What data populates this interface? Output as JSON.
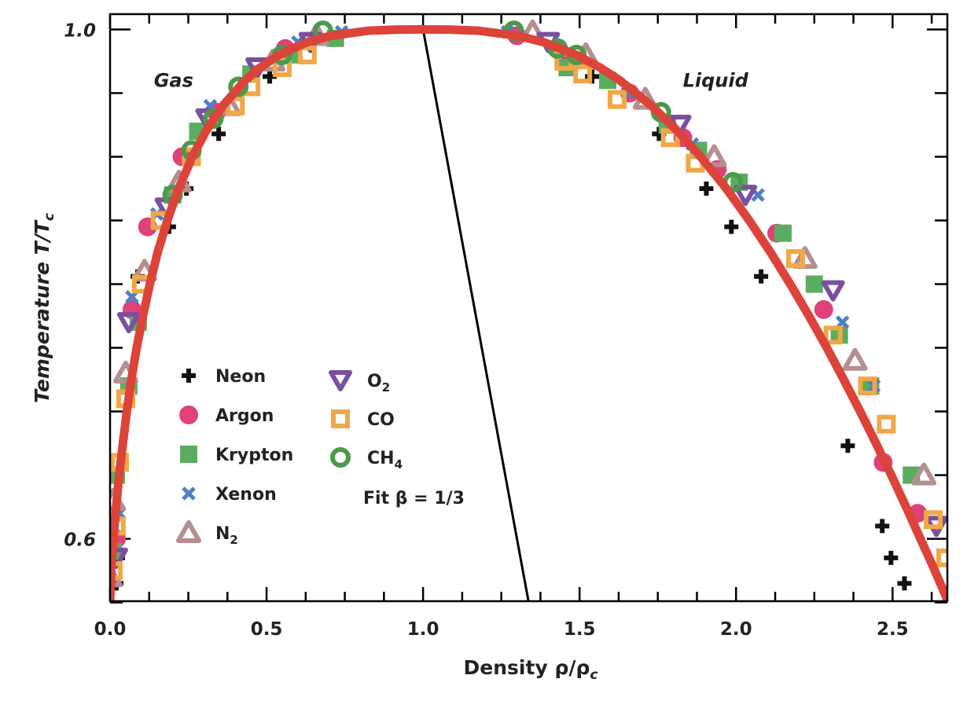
{
  "chart_data": {
    "type": "scatter",
    "title": "",
    "xlabel": "Density ρ/ρ",
    "xlabel_sub": "c",
    "ylabel": "Temperature T/T",
    "ylabel_sub": "c",
    "xlim": [
      0,
      2.675
    ],
    "ylim": [
      0.551,
      1.012
    ],
    "x_tick_labels": [
      "0.0",
      "0.5",
      "1.0",
      "1.5",
      "2.0",
      "2.5"
    ],
    "x_tick_values": [
      0,
      0.5,
      1.0,
      1.5,
      2.0,
      2.5
    ],
    "x_minor_step": 0.125,
    "y_tick_labels": [
      "1.0",
      "0.6"
    ],
    "y_tick_values": [
      1.0,
      0.6
    ],
    "y_minor_step": 0.05,
    "grid": false,
    "legend_placement": "lower-left",
    "annotations": [
      {
        "text": "Gas",
        "x": 0.14,
        "y": 0.955
      },
      {
        "text": "Liquid",
        "x": 1.83,
        "y": 0.955
      }
    ],
    "series": [
      {
        "name": "Neon",
        "sub": "",
        "marker": "plus",
        "color": "#111111",
        "points": [
          [
            0.02,
            0.565
          ],
          [
            0.025,
            0.585
          ],
          [
            0.088,
            0.806
          ],
          [
            0.188,
            0.845
          ],
          [
            0.244,
            0.875
          ],
          [
            0.347,
            0.918
          ],
          [
            0.51,
            0.963
          ],
          [
            1.54,
            0.963
          ],
          [
            1.754,
            0.918
          ],
          [
            1.905,
            0.875
          ],
          [
            1.985,
            0.845
          ],
          [
            2.08,
            0.806
          ],
          [
            2.357,
            0.673
          ],
          [
            2.467,
            0.61
          ],
          [
            2.495,
            0.585
          ],
          [
            2.538,
            0.565
          ]
        ]
      },
      {
        "name": "Argon",
        "sub": "",
        "marker": "circle",
        "color": "#e0417a",
        "points": [
          [
            0.02,
            0.6
          ],
          [
            0.07,
            0.78
          ],
          [
            0.12,
            0.845
          ],
          [
            0.23,
            0.9
          ],
          [
            0.34,
            0.935
          ],
          [
            0.56,
            0.985
          ],
          [
            1.3,
            0.995
          ],
          [
            1.47,
            0.975
          ],
          [
            1.66,
            0.95
          ],
          [
            1.83,
            0.915
          ],
          [
            1.94,
            0.89
          ],
          [
            2.13,
            0.84
          ],
          [
            2.28,
            0.78
          ],
          [
            2.47,
            0.66
          ],
          [
            2.58,
            0.62
          ]
        ]
      },
      {
        "name": "Krypton",
        "sub": "",
        "marker": "square",
        "color": "#5aad5e",
        "points": [
          [
            0.01,
            0.59
          ],
          [
            0.02,
            0.65
          ],
          [
            0.06,
            0.72
          ],
          [
            0.09,
            0.77
          ],
          [
            0.2,
            0.87
          ],
          [
            0.28,
            0.92
          ],
          [
            0.45,
            0.965
          ],
          [
            0.58,
            0.98
          ],
          [
            0.72,
            0.993
          ],
          [
            1.46,
            0.97
          ],
          [
            1.59,
            0.96
          ],
          [
            1.78,
            0.925
          ],
          [
            1.88,
            0.905
          ],
          [
            2.01,
            0.88
          ],
          [
            2.15,
            0.84
          ],
          [
            2.25,
            0.8
          ],
          [
            2.33,
            0.76
          ],
          [
            2.43,
            0.72
          ],
          [
            2.56,
            0.65
          ]
        ]
      },
      {
        "name": "Xenon",
        "sub": "",
        "marker": "x",
        "color": "#4f7fc4",
        "points": [
          [
            0.03,
            0.62
          ],
          [
            0.07,
            0.79
          ],
          [
            0.15,
            0.855
          ],
          [
            0.32,
            0.94
          ],
          [
            0.6,
            0.99
          ],
          [
            0.74,
            0.998
          ],
          [
            1.27,
            0.998
          ],
          [
            1.42,
            0.985
          ],
          [
            1.66,
            0.95
          ],
          [
            1.86,
            0.91
          ],
          [
            2.07,
            0.87
          ],
          [
            2.34,
            0.77
          ],
          [
            2.44,
            0.72
          ]
        ]
      },
      {
        "name": "N",
        "sub": "2",
        "marker": "triangle",
        "color": "#b58f8f",
        "points": [
          [
            0.0,
            0.57
          ],
          [
            0.01,
            0.63
          ],
          [
            0.05,
            0.73
          ],
          [
            0.11,
            0.81
          ],
          [
            0.22,
            0.88
          ],
          [
            0.38,
            0.94
          ],
          [
            0.52,
            0.975
          ],
          [
            0.66,
            0.995
          ],
          [
            1.35,
            0.998
          ],
          [
            1.52,
            0.98
          ],
          [
            1.71,
            0.945
          ],
          [
            1.93,
            0.9
          ],
          [
            2.22,
            0.82
          ],
          [
            2.38,
            0.74
          ],
          [
            2.6,
            0.65
          ]
        ]
      },
      {
        "name": "O",
        "sub": "2",
        "marker": "triangle-down",
        "color": "#7a4fa0",
        "points": [
          [
            0.02,
            0.585
          ],
          [
            0.06,
            0.77
          ],
          [
            0.18,
            0.86
          ],
          [
            0.31,
            0.93
          ],
          [
            0.47,
            0.97
          ],
          [
            0.64,
            0.99
          ],
          [
            1.4,
            0.99
          ],
          [
            1.82,
            0.925
          ],
          [
            2.03,
            0.87
          ],
          [
            2.31,
            0.795
          ],
          [
            2.64,
            0.61
          ]
        ]
      },
      {
        "name": "CO",
        "sub": "",
        "marker": "open-square",
        "color": "#f0a848",
        "points": [
          [
            0.01,
            0.575
          ],
          [
            0.02,
            0.61
          ],
          [
            0.03,
            0.66
          ],
          [
            0.05,
            0.71
          ],
          [
            0.1,
            0.8
          ],
          [
            0.16,
            0.85
          ],
          [
            0.26,
            0.9
          ],
          [
            0.4,
            0.94
          ],
          [
            0.45,
            0.955
          ],
          [
            0.55,
            0.97
          ],
          [
            0.63,
            0.98
          ],
          [
            1.45,
            0.975
          ],
          [
            1.51,
            0.965
          ],
          [
            1.62,
            0.945
          ],
          [
            1.79,
            0.915
          ],
          [
            1.87,
            0.895
          ],
          [
            2.19,
            0.82
          ],
          [
            2.31,
            0.76
          ],
          [
            2.42,
            0.72
          ],
          [
            2.48,
            0.69
          ],
          [
            2.63,
            0.615
          ],
          [
            2.67,
            0.585
          ]
        ]
      },
      {
        "name": "CH",
        "sub": "4",
        "marker": "open-circle",
        "color": "#4a9a4a",
        "points": [
          [
            0.2,
            0.87
          ],
          [
            0.26,
            0.905
          ],
          [
            0.33,
            0.93
          ],
          [
            0.41,
            0.955
          ],
          [
            0.55,
            0.98
          ],
          [
            0.68,
            0.999
          ],
          [
            1.29,
            0.999
          ],
          [
            1.43,
            0.985
          ],
          [
            1.49,
            0.98
          ],
          [
            1.76,
            0.935
          ],
          [
            1.99,
            0.88
          ]
        ]
      }
    ],
    "fit": {
      "name": "Fit β = 1/3",
      "color": "#dc4439",
      "points": [
        [
          0,
          0.55
        ],
        [
          0.004,
          0.58
        ],
        [
          0.0175,
          0.62
        ],
        [
          0.029,
          0.65
        ],
        [
          0.041,
          0.675
        ],
        [
          0.0535,
          0.7
        ],
        [
          0.068,
          0.725
        ],
        [
          0.085,
          0.75
        ],
        [
          0.105,
          0.775
        ],
        [
          0.127,
          0.8
        ],
        [
          0.152,
          0.825
        ],
        [
          0.183,
          0.85
        ],
        [
          0.219,
          0.875
        ],
        [
          0.263,
          0.9
        ],
        [
          0.306,
          0.92
        ],
        [
          0.36,
          0.94
        ],
        [
          0.4315,
          0.96
        ],
        [
          0.479,
          0.97
        ],
        [
          0.54,
          0.98
        ],
        [
          0.63,
          0.99
        ],
        [
          0.705,
          0.995
        ],
        [
          0.826,
          0.999
        ],
        [
          0.919,
          0.9999
        ],
        [
          1.0,
          1.0
        ],
        [
          1.081,
          0.9999
        ],
        [
          1.176,
          0.999
        ],
        [
          1.303,
          0.995
        ],
        [
          1.385,
          0.99
        ],
        [
          1.49,
          0.98
        ],
        [
          1.566,
          0.97
        ],
        [
          1.6285,
          0.96
        ],
        [
          1.73,
          0.94
        ],
        [
          1.814,
          0.92
        ],
        [
          1.887,
          0.9
        ],
        [
          1.969,
          0.875
        ],
        [
          2.042,
          0.85
        ],
        [
          2.11,
          0.825
        ],
        [
          2.173,
          0.8
        ],
        [
          2.233,
          0.775
        ],
        [
          2.29,
          0.75
        ],
        [
          2.344,
          0.725
        ],
        [
          2.3965,
          0.7
        ],
        [
          2.447,
          0.675
        ],
        [
          2.496,
          0.65
        ],
        [
          2.5525,
          0.62
        ],
        [
          2.589,
          0.6
        ],
        [
          2.626,
          0.58
        ],
        [
          2.679,
          0.55
        ]
      ]
    },
    "diameter_line": {
      "color": "#000000",
      "points": [
        [
          1.0,
          1.0
        ],
        [
          1.3375,
          0.55
        ]
      ]
    }
  }
}
